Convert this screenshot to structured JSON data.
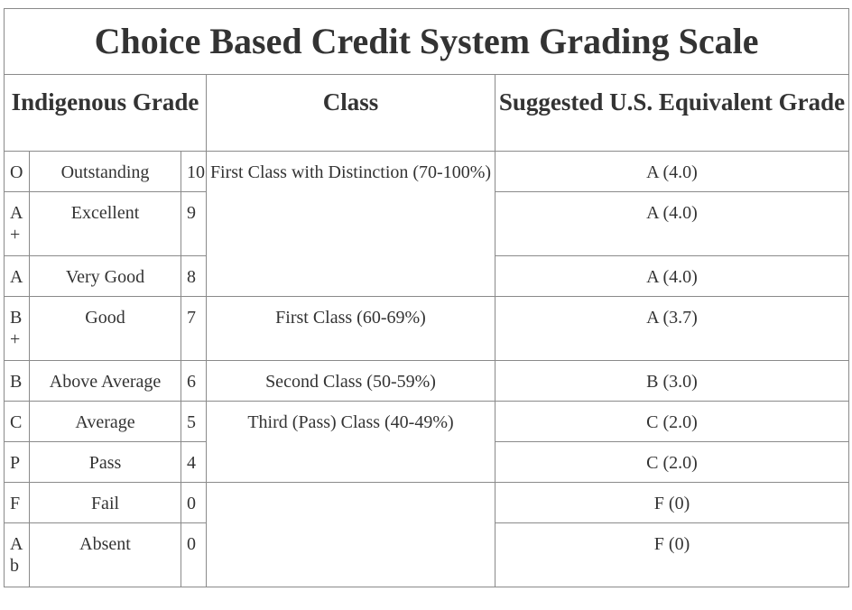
{
  "title": "Choice Based Credit System Grading Scale",
  "headers": {
    "indigenous": "Indigenous Grade",
    "class": "Class",
    "us": "Suggested U.S. Equivalent Grade"
  },
  "rows": [
    {
      "letter": "O",
      "desc": "Outstanding",
      "point": "10",
      "us": "A (4.0)"
    },
    {
      "letter": "A+",
      "desc": "Excellent",
      "point": "9",
      "us": "A (4.0)"
    },
    {
      "letter": "A",
      "desc": "Very Good",
      "point": "8",
      "us": "A (4.0)"
    },
    {
      "letter": "B+",
      "desc": "Good",
      "point": "7",
      "us": "A (3.7)"
    },
    {
      "letter": "B",
      "desc": "Above Average",
      "point": "6",
      "us": "B (3.0)"
    },
    {
      "letter": "C",
      "desc": "Average",
      "point": "5",
      "us": "C (2.0)"
    },
    {
      "letter": "P",
      "desc": "Pass",
      "point": "4",
      "us": "C (2.0)"
    },
    {
      "letter": "F",
      "desc": "Fail",
      "point": "0",
      "us": "F (0)"
    },
    {
      "letter": "Ab",
      "desc": "Absent",
      "point": "0",
      "us": "F (0)"
    }
  ],
  "classes": [
    "First Class with Distinction (70-100%)",
    "First Class (60-69%)",
    "Second Class (50-59%)",
    "Third (Pass) Class (40-49%)",
    ""
  ]
}
